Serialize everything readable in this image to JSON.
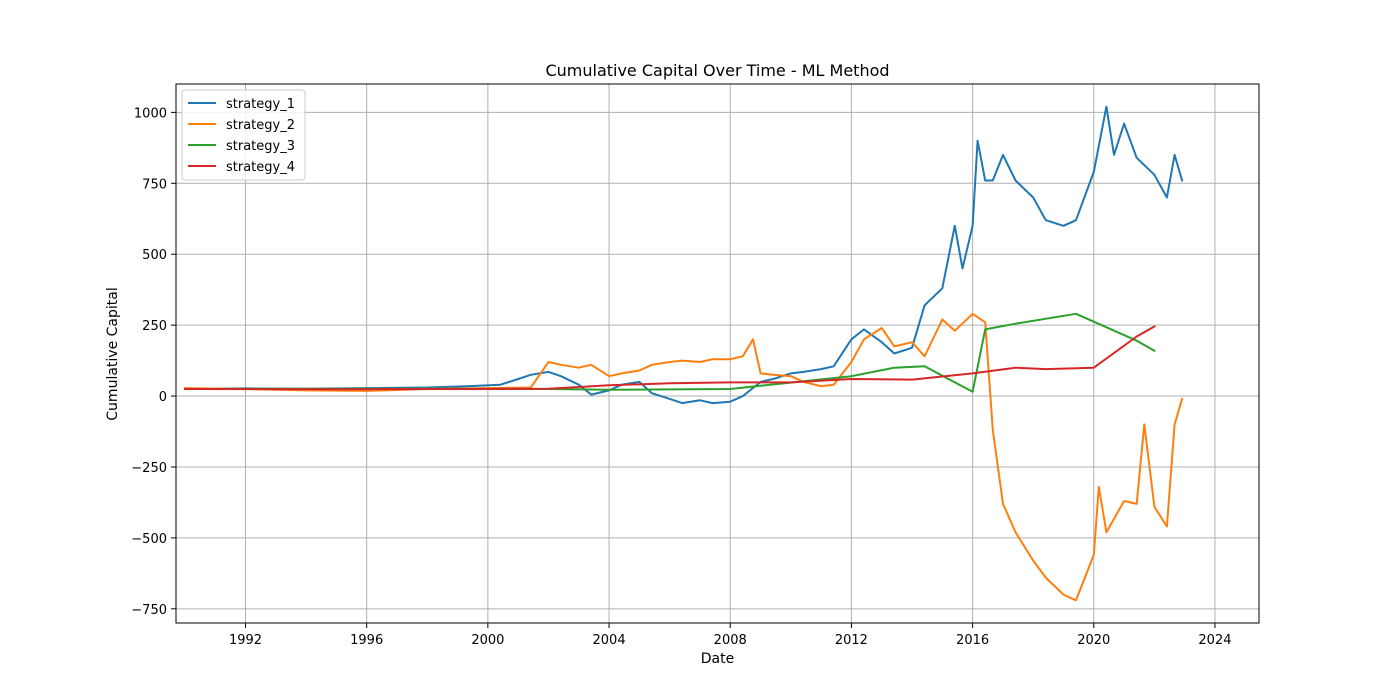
{
  "chart_data": {
    "type": "line",
    "title": "Cumulative Capital Over Time - ML Method",
    "xlabel": "Date",
    "ylabel": "Cumulative Capital",
    "xlim": [
      "1989-09-15",
      "2025-06-15"
    ],
    "ylim": [
      -800,
      1100
    ],
    "x_ticks": [
      "1992",
      "1996",
      "2000",
      "2004",
      "2008",
      "2012",
      "2016",
      "2020",
      "2024"
    ],
    "y_ticks": [
      -750,
      -500,
      -250,
      0,
      250,
      500,
      750,
      1000
    ],
    "y_tick_labels": [
      "−750",
      "−500",
      "−250",
      "0",
      "250",
      "500",
      "750",
      "1000"
    ],
    "grid": true,
    "legend_position": "top-left",
    "series": [
      {
        "name": "strategy_1",
        "color": "#1f77b4",
        "points": [
          [
            "1990-01-01",
            25
          ],
          [
            "1992-01-01",
            27
          ],
          [
            "1994-01-01",
            26
          ],
          [
            "1996-01-01",
            28
          ],
          [
            "1998-01-01",
            30
          ],
          [
            "1999-06-01",
            35
          ],
          [
            "2000-06-01",
            40
          ],
          [
            "2001-01-01",
            60
          ],
          [
            "2001-06-01",
            75
          ],
          [
            "2002-01-01",
            85
          ],
          [
            "2002-06-01",
            70
          ],
          [
            "2003-01-01",
            40
          ],
          [
            "2003-06-01",
            5
          ],
          [
            "2004-01-01",
            20
          ],
          [
            "2004-06-01",
            40
          ],
          [
            "2005-01-01",
            50
          ],
          [
            "2005-06-01",
            10
          ],
          [
            "2006-01-01",
            -10
          ],
          [
            "2006-06-01",
            -25
          ],
          [
            "2007-01-01",
            -15
          ],
          [
            "2007-06-01",
            -25
          ],
          [
            "2008-01-01",
            -20
          ],
          [
            "2008-06-01",
            0
          ],
          [
            "2009-01-01",
            50
          ],
          [
            "2009-06-01",
            60
          ],
          [
            "2010-01-01",
            80
          ],
          [
            "2010-06-01",
            85
          ],
          [
            "2011-01-01",
            95
          ],
          [
            "2011-06-01",
            105
          ],
          [
            "2012-01-01",
            200
          ],
          [
            "2012-06-01",
            235
          ],
          [
            "2013-01-01",
            190
          ],
          [
            "2013-06-01",
            150
          ],
          [
            "2014-01-01",
            170
          ],
          [
            "2014-06-01",
            320
          ],
          [
            "2015-01-01",
            380
          ],
          [
            "2015-06-01",
            600
          ],
          [
            "2015-09-01",
            450
          ],
          [
            "2016-01-01",
            600
          ],
          [
            "2016-03-01",
            900
          ],
          [
            "2016-06-01",
            760
          ],
          [
            "2016-09-01",
            760
          ],
          [
            "2017-01-01",
            850
          ],
          [
            "2017-06-01",
            760
          ],
          [
            "2018-01-01",
            700
          ],
          [
            "2018-06-01",
            620
          ],
          [
            "2019-01-01",
            600
          ],
          [
            "2019-06-01",
            620
          ],
          [
            "2020-01-01",
            790
          ],
          [
            "2020-06-01",
            1020
          ],
          [
            "2020-09-01",
            850
          ],
          [
            "2021-01-01",
            960
          ],
          [
            "2021-06-01",
            840
          ],
          [
            "2022-01-01",
            780
          ],
          [
            "2022-06-01",
            700
          ],
          [
            "2022-09-01",
            850
          ],
          [
            "2022-12-01",
            760
          ]
        ]
      },
      {
        "name": "strategy_2",
        "color": "#ff7f0e",
        "points": [
          [
            "1990-01-01",
            28
          ],
          [
            "1992-01-01",
            25
          ],
          [
            "1994-01-01",
            20
          ],
          [
            "1996-01-01",
            18
          ],
          [
            "1998-01-01",
            25
          ],
          [
            "2000-01-01",
            28
          ],
          [
            "2001-06-01",
            30
          ],
          [
            "2002-01-01",
            120
          ],
          [
            "2002-06-01",
            110
          ],
          [
            "2003-01-01",
            100
          ],
          [
            "2003-06-01",
            110
          ],
          [
            "2004-01-01",
            70
          ],
          [
            "2004-06-01",
            80
          ],
          [
            "2005-01-01",
            90
          ],
          [
            "2005-06-01",
            110
          ],
          [
            "2006-01-01",
            120
          ],
          [
            "2006-06-01",
            125
          ],
          [
            "2007-01-01",
            120
          ],
          [
            "2007-06-01",
            130
          ],
          [
            "2008-01-01",
            130
          ],
          [
            "2008-06-01",
            140
          ],
          [
            "2008-10-01",
            200
          ],
          [
            "2009-01-01",
            80
          ],
          [
            "2009-06-01",
            75
          ],
          [
            "2010-01-01",
            70
          ],
          [
            "2010-06-01",
            50
          ],
          [
            "2011-01-01",
            35
          ],
          [
            "2011-06-01",
            40
          ],
          [
            "2012-01-01",
            120
          ],
          [
            "2012-06-01",
            200
          ],
          [
            "2013-01-01",
            240
          ],
          [
            "2013-06-01",
            175
          ],
          [
            "2014-01-01",
            190
          ],
          [
            "2014-06-01",
            140
          ],
          [
            "2015-01-01",
            270
          ],
          [
            "2015-06-01",
            230
          ],
          [
            "2016-01-01",
            290
          ],
          [
            "2016-06-01",
            260
          ],
          [
            "2016-09-01",
            -120
          ],
          [
            "2017-01-01",
            -380
          ],
          [
            "2017-06-01",
            -480
          ],
          [
            "2018-01-01",
            -580
          ],
          [
            "2018-06-01",
            -640
          ],
          [
            "2019-01-01",
            -700
          ],
          [
            "2019-06-01",
            -720
          ],
          [
            "2020-01-01",
            -560
          ],
          [
            "2020-03-01",
            -320
          ],
          [
            "2020-06-01",
            -480
          ],
          [
            "2021-01-01",
            -370
          ],
          [
            "2021-06-01",
            -380
          ],
          [
            "2021-09-01",
            -100
          ],
          [
            "2022-01-01",
            -390
          ],
          [
            "2022-06-01",
            -460
          ],
          [
            "2022-09-01",
            -100
          ],
          [
            "2022-12-01",
            -10
          ]
        ]
      },
      {
        "name": "strategy_3",
        "color": "#2ca02c",
        "points": [
          [
            "1990-01-01",
            25
          ],
          [
            "1998-01-01",
            26
          ],
          [
            "2002-01-01",
            25
          ],
          [
            "2004-01-01",
            22
          ],
          [
            "2008-01-01",
            25
          ],
          [
            "2012-01-01",
            70
          ],
          [
            "2013-06-01",
            100
          ],
          [
            "2014-06-01",
            105
          ],
          [
            "2016-01-01",
            15
          ],
          [
            "2016-06-01",
            235
          ],
          [
            "2017-06-01",
            255
          ],
          [
            "2019-06-01",
            290
          ],
          [
            "2021-06-01",
            195
          ],
          [
            "2022-01-01",
            160
          ]
        ]
      },
      {
        "name": "strategy_4",
        "color": "#d62728",
        "points": [
          [
            "1990-01-01",
            25
          ],
          [
            "1996-01-01",
            24
          ],
          [
            "2000-01-01",
            25
          ],
          [
            "2002-01-01",
            26
          ],
          [
            "2004-01-01",
            38
          ],
          [
            "2006-01-01",
            45
          ],
          [
            "2008-01-01",
            48
          ],
          [
            "2010-01-01",
            48
          ],
          [
            "2012-01-01",
            60
          ],
          [
            "2014-01-01",
            58
          ],
          [
            "2016-01-01",
            80
          ],
          [
            "2017-06-01",
            100
          ],
          [
            "2018-06-01",
            95
          ],
          [
            "2020-01-01",
            100
          ],
          [
            "2021-06-01",
            210
          ],
          [
            "2022-01-01",
            245
          ]
        ]
      }
    ]
  }
}
